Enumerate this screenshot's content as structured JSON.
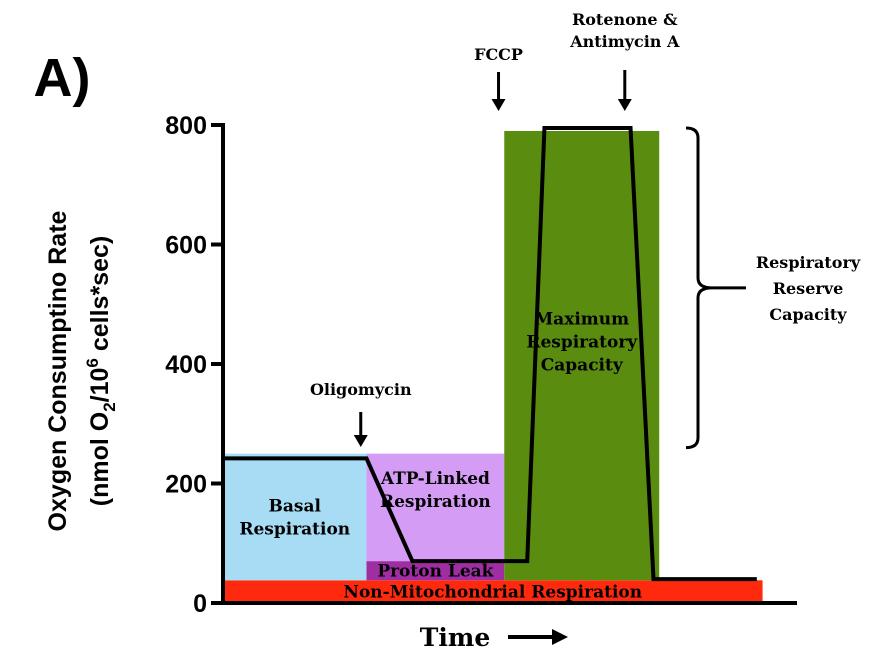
{
  "chart_data": {
    "type": "area",
    "panel_label": "A)",
    "xlabel": "Time",
    "ylabel": "Oxygen Consumptino Rate",
    "ylabel_units": {
      "prefix": "(nmol O",
      "sub": "2",
      "mid": "/10",
      "sup": "6",
      "suffix": " cells*sec)"
    },
    "ylim": [
      0,
      800
    ],
    "yticks": [
      0,
      200,
      400,
      600,
      800
    ],
    "xlim": [
      0,
      100
    ],
    "trace": {
      "x": [
        0,
        25,
        33,
        48,
        53,
        56,
        71,
        75,
        93
      ],
      "y": [
        242,
        242,
        70,
        70,
        70,
        795,
        795,
        40,
        40
      ]
    },
    "regions": [
      {
        "name": "non-mito",
        "label": "Non-Mitochondrial Respiration",
        "color": "#ff2a0e",
        "x": [
          0,
          94
        ],
        "y": [
          0,
          38
        ]
      },
      {
        "name": "basal",
        "label": "Basal Respiration",
        "color": "#a8dcf5",
        "x": [
          0,
          25
        ],
        "y": [
          38,
          250
        ]
      },
      {
        "name": "atp",
        "label": "ATP-Linked Respiration",
        "color": "#d59cf6",
        "x": [
          25,
          49
        ],
        "y": [
          70,
          250
        ]
      },
      {
        "name": "proton-leak",
        "label": "Proton Leak",
        "color": "#a02ea3",
        "x": [
          25,
          49
        ],
        "y": [
          38,
          70
        ]
      },
      {
        "name": "maximum",
        "label": "Maximum Respiratory Capacity",
        "color": "#5a8c0f",
        "x": [
          49,
          76
        ],
        "y": [
          38,
          790
        ]
      }
    ],
    "annotations": [
      {
        "name": "oligomycin",
        "label": "Oligomycin",
        "x": 24
      },
      {
        "name": "fccp",
        "label": "FCCP",
        "x": 48
      },
      {
        "name": "rotenone",
        "label": "Rotenone & Antimycin A",
        "x": 70
      }
    ],
    "bracket": {
      "label": "Respiratory Reserve Capacity",
      "y": [
        260,
        795
      ]
    }
  }
}
